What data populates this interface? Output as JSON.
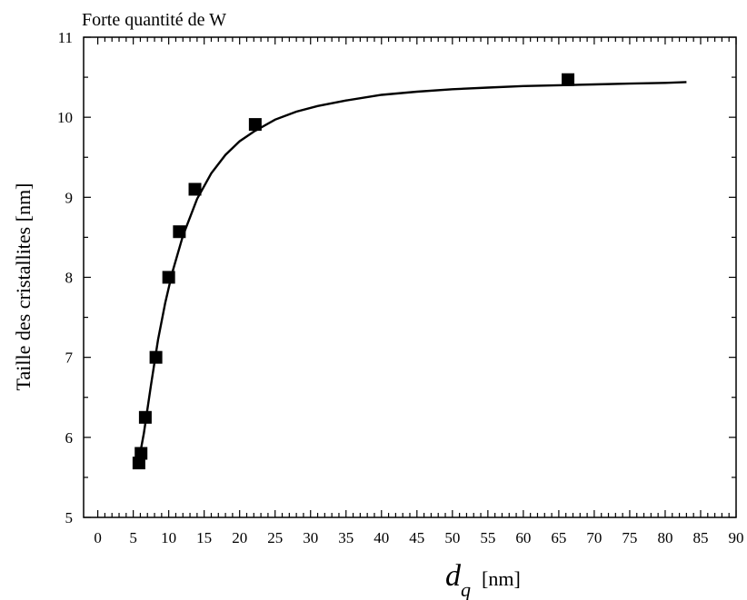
{
  "chart_data": {
    "type": "scatter",
    "title": "Forte quantité de W",
    "xlabel": {
      "var": "d",
      "sub": "q",
      "unit": "[nm]"
    },
    "ylabel": "Taille des cristallites [nm]",
    "xlim": [
      -2,
      90
    ],
    "ylim": [
      5,
      11
    ],
    "x_ticks": [
      "0",
      "5",
      "10",
      "15",
      "20",
      "25",
      "30",
      "35",
      "40",
      "45",
      "50",
      "55",
      "60",
      "65",
      "70",
      "75",
      "80",
      "85",
      "90"
    ],
    "y_ticks": [
      "5",
      "6",
      "7",
      "8",
      "9",
      "10",
      "11"
    ],
    "grid": false,
    "legend": "none",
    "series": [
      {
        "kind": "points",
        "marker": "square",
        "color": "#000000",
        "x": [
          5.8,
          6.1,
          6.7,
          8.2,
          10.0,
          11.5,
          13.7,
          22.2,
          66.3
        ],
        "y": [
          5.68,
          5.8,
          6.25,
          7.0,
          8.0,
          8.57,
          9.1,
          9.91,
          10.47
        ]
      },
      {
        "kind": "fit-line",
        "color": "#000000",
        "x": [
          5.6,
          6.5,
          7.5,
          8.5,
          9.5,
          10.5,
          12,
          14,
          16,
          18,
          20,
          22,
          25,
          28,
          31,
          35,
          40,
          45,
          50,
          55,
          60,
          65,
          70,
          75,
          80,
          83
        ],
        "y": [
          5.62,
          6.05,
          6.65,
          7.22,
          7.68,
          8.06,
          8.52,
          8.98,
          9.3,
          9.53,
          9.7,
          9.82,
          9.97,
          10.07,
          10.14,
          10.21,
          10.28,
          10.32,
          10.35,
          10.37,
          10.39,
          10.4,
          10.41,
          10.42,
          10.43,
          10.44
        ]
      }
    ]
  }
}
